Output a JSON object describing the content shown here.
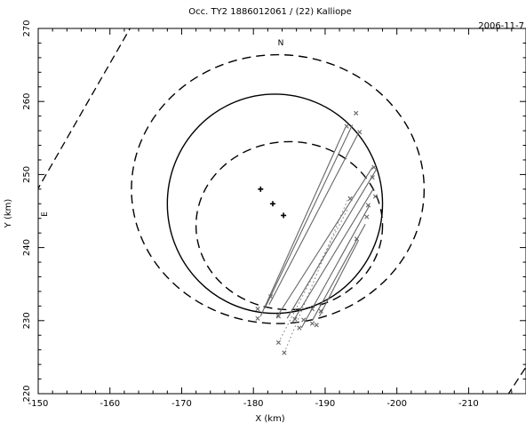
{
  "chart_data": {
    "type": "line",
    "title": "Occ. TY2 1886012061 / (22) Kalliope",
    "date": "2006-11-7",
    "xlabel": "X (km)",
    "ylabel": "Y (km)",
    "xlim": [
      -150,
      -218
    ],
    "ylim": [
      220,
      270
    ],
    "xticks": [
      -150,
      -160,
      -170,
      -180,
      -190,
      -200,
      -210
    ],
    "yticks": [
      220,
      230,
      240,
      250,
      260,
      270
    ],
    "xtick_labels": [
      "-150",
      "-160",
      "-170",
      "-180",
      "-190",
      "-200",
      "-210"
    ],
    "ytick_labels": [
      "220",
      "230",
      "240",
      "250",
      "260",
      "270"
    ],
    "north_label": "N",
    "east_label": "E",
    "ellipses": [
      {
        "name": "outer",
        "style": "dashed",
        "cx": -183.4,
        "cy": 248.0,
        "rx": 20.4,
        "ry": 18.4
      },
      {
        "name": "fit",
        "style": "solid",
        "cx": -183.0,
        "cy": 246.0,
        "rx": 15.0,
        "ry": 15.0
      },
      {
        "name": "inner",
        "style": "dashed",
        "cx": -185.0,
        "cy": 243.0,
        "rx": 13.0,
        "ry": 11.5
      }
    ],
    "centers": [
      {
        "x": -181.0,
        "y": 248.0
      },
      {
        "x": -182.7,
        "y": 246.0
      },
      {
        "x": -184.2,
        "y": 244.4
      }
    ],
    "chords": [
      {
        "x1": -181.0,
        "y1": 230.6,
        "x2": -192.8,
        "y2": 256.4
      },
      {
        "x1": -181.6,
        "y1": 231.7,
        "x2": -193.8,
        "y2": 256.8
      },
      {
        "x1": -182.2,
        "y1": 232.2,
        "x2": -194.6,
        "y2": 255.6
      },
      {
        "x1": -183.2,
        "y1": 230.4,
        "x2": -196.6,
        "y2": 251.0
      },
      {
        "x1": -184.7,
        "y1": 230.3,
        "x2": -197.2,
        "y2": 250.8
      },
      {
        "x1": -185.4,
        "y1": 229.7,
        "x2": -196.7,
        "y2": 248.0
      },
      {
        "x1": -186.7,
        "y1": 229.0,
        "x2": -196.2,
        "y2": 245.8
      },
      {
        "x1": -188.2,
        "y1": 230.0,
        "x2": -195.6,
        "y2": 243.2
      },
      {
        "x1": -189.2,
        "y1": 230.6,
        "x2": -194.6,
        "y2": 240.9
      }
    ],
    "chord_ends": [
      {
        "x": -180.6,
        "y": 231.6
      },
      {
        "x": -180.6,
        "y": 230.3
      },
      {
        "x": -182.4,
        "y": 233.3
      },
      {
        "x": -183.5,
        "y": 230.6
      },
      {
        "x": -185.8,
        "y": 230.2
      },
      {
        "x": -186.4,
        "y": 229.0
      },
      {
        "x": -187.0,
        "y": 230.1
      },
      {
        "x": -188.2,
        "y": 229.6
      },
      {
        "x": -188.2,
        "y": 231.6
      },
      {
        "x": -188.8,
        "y": 229.4
      },
      {
        "x": -189.4,
        "y": 231.3
      },
      {
        "x": -193.0,
        "y": 256.6
      },
      {
        "x": -194.3,
        "y": 258.4
      },
      {
        "x": -194.8,
        "y": 255.8
      },
      {
        "x": -196.8,
        "y": 251.0
      },
      {
        "x": -196.6,
        "y": 249.6
      },
      {
        "x": -197.0,
        "y": 247.0
      },
      {
        "x": -196.0,
        "y": 245.8
      },
      {
        "x": -195.8,
        "y": 244.2
      },
      {
        "x": -194.4,
        "y": 241.2
      },
      {
        "x": -193.5,
        "y": 246.7
      },
      {
        "x": -183.5,
        "y": 227.0
      },
      {
        "x": -184.3,
        "y": 225.6
      }
    ],
    "dotted_chords": [
      {
        "x1": -183.5,
        "y1": 227.0,
        "x2": -193.2,
        "y2": 245.4
      },
      {
        "x1": -184.3,
        "y1": 225.6,
        "x2": -193.4,
        "y2": 247.2
      }
    ],
    "boundary_lines": [
      {
        "x1": -149.7,
        "y1": 247.6,
        "x2": -162.8,
        "y2": 270.0
      },
      {
        "x1": -217.9,
        "y1": 223.5,
        "x2": -215.5,
        "y2": 219.9
      }
    ]
  }
}
